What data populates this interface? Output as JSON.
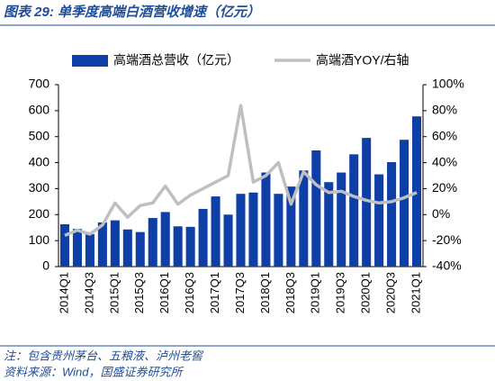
{
  "chart_data": {
    "type": "bar",
    "title": "图表 29:  单季度高端白酒营收增速（亿元）",
    "notes": [
      "注：包含贵州茅台、五粮液、泸州老窖",
      "资料来源：Wind，国盛证券研究所"
    ],
    "categories": [
      "2014Q1",
      null,
      "2014Q3",
      null,
      "2015Q1",
      null,
      "2015Q3",
      null,
      "2016Q1",
      null,
      "2016Q3",
      null,
      "2017Q1",
      null,
      "2017Q3",
      null,
      "2018Q1",
      null,
      "2018Q3",
      null,
      "2019Q1",
      null,
      "2019Q3",
      null,
      "2020Q1",
      null,
      "2020Q3",
      null,
      "2021Q1"
    ],
    "series": [
      {
        "name": "高端酒总营收（亿元）",
        "color": "#0d3fa6",
        "type": "bar",
        "values": [
          163,
          145,
          125,
          170,
          178,
          143,
          133,
          187,
          210,
          155,
          153,
          222,
          270,
          200,
          280,
          285,
          362,
          280,
          308,
          370,
          447,
          325,
          362,
          432,
          495,
          355,
          402,
          488,
          578
        ]
      },
      {
        "name": "高端酒YOY/右轴",
        "color": "#bfbfbf",
        "type": "line",
        "axis": "y2",
        "values": [
          -16,
          -12,
          -15,
          -8,
          9,
          -2,
          7,
          9,
          22,
          8,
          15,
          20,
          25,
          30,
          84,
          25,
          30,
          40,
          8,
          33,
          23,
          17,
          18,
          14,
          11,
          9,
          10,
          13,
          17
        ]
      }
    ],
    "ylim": [
      0,
      700
    ],
    "yticks": [
      0,
      100,
      200,
      300,
      400,
      500,
      600,
      700
    ],
    "y2lim": [
      -40,
      100
    ],
    "y2ticks": [
      {
        "value": -40,
        "label": "-40%"
      },
      {
        "value": -20,
        "label": "-20%"
      },
      {
        "value": 0,
        "label": "0%"
      },
      {
        "value": 20,
        "label": "20%"
      },
      {
        "value": 40,
        "label": "40%"
      },
      {
        "value": 60,
        "label": "60%"
      },
      {
        "value": 80,
        "label": "80%"
      },
      {
        "value": 100,
        "label": "100%"
      }
    ],
    "legend": "top"
  }
}
